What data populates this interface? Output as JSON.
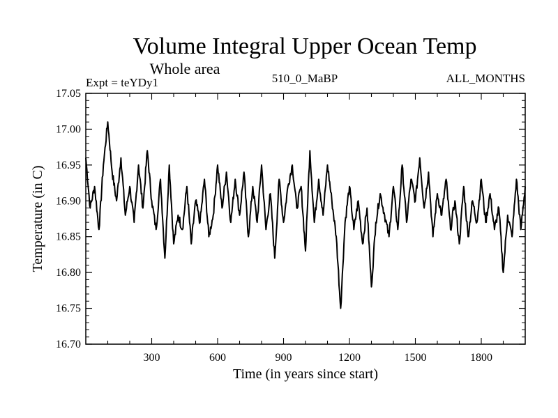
{
  "chart_data": {
    "type": "line",
    "title": "Volume Integral Upper Ocean Temp",
    "subtitle": "Whole area",
    "experiment": "Expt = teYDy1",
    "run": "510_0_MaBP",
    "season": "ALL_MONTHS",
    "xlabel": "Time (in years since start)",
    "ylabel": "Temperature (in C)",
    "xlim": [
      0,
      2000
    ],
    "ylim": [
      16.7,
      17.05
    ],
    "xticks": [
      300,
      600,
      900,
      1200,
      1500,
      1800
    ],
    "yticks": [
      "16.70",
      "16.75",
      "16.80",
      "16.85",
      "16.90",
      "16.95",
      "17.00",
      "17.05"
    ],
    "grid": false,
    "series": [
      {
        "name": "Volume Integral Upper Ocean Temp",
        "x": [
          0,
          20,
          40,
          60,
          80,
          100,
          120,
          140,
          160,
          180,
          200,
          220,
          240,
          260,
          280,
          300,
          320,
          340,
          360,
          380,
          400,
          420,
          440,
          460,
          480,
          500,
          520,
          540,
          560,
          580,
          600,
          620,
          640,
          660,
          680,
          700,
          720,
          740,
          760,
          780,
          800,
          820,
          840,
          860,
          880,
          900,
          920,
          940,
          960,
          980,
          1000,
          1020,
          1040,
          1060,
          1080,
          1100,
          1120,
          1140,
          1160,
          1180,
          1200,
          1220,
          1240,
          1260,
          1280,
          1300,
          1320,
          1340,
          1360,
          1380,
          1400,
          1420,
          1440,
          1460,
          1480,
          1500,
          1520,
          1540,
          1560,
          1580,
          1600,
          1620,
          1640,
          1660,
          1680,
          1700,
          1720,
          1740,
          1760,
          1780,
          1800,
          1820,
          1840,
          1860,
          1880,
          1900,
          1920,
          1940,
          1960,
          1980,
          2000
        ],
        "y": [
          16.96,
          16.89,
          16.92,
          16.86,
          16.95,
          17.01,
          16.94,
          16.9,
          16.96,
          16.88,
          16.92,
          16.87,
          16.95,
          16.89,
          16.97,
          16.9,
          16.86,
          16.93,
          16.82,
          16.95,
          16.84,
          16.88,
          16.86,
          16.92,
          16.84,
          16.9,
          16.87,
          16.93,
          16.85,
          16.88,
          16.95,
          16.89,
          16.94,
          16.87,
          16.93,
          16.88,
          16.94,
          16.85,
          16.92,
          16.87,
          16.95,
          16.86,
          16.91,
          16.82,
          16.93,
          16.87,
          16.92,
          16.95,
          16.89,
          16.92,
          16.83,
          16.97,
          16.87,
          16.93,
          16.88,
          16.95,
          16.9,
          16.85,
          16.75,
          16.87,
          16.92,
          16.86,
          16.9,
          16.84,
          16.89,
          16.78,
          16.87,
          16.91,
          16.88,
          16.85,
          16.92,
          16.86,
          16.95,
          16.87,
          16.93,
          16.9,
          16.96,
          16.89,
          16.94,
          16.85,
          16.91,
          16.88,
          16.93,
          16.86,
          16.9,
          16.84,
          16.92,
          16.85,
          16.9,
          16.87,
          16.93,
          16.87,
          16.91,
          16.86,
          16.89,
          16.8,
          16.88,
          16.85,
          16.93,
          16.86,
          16.92
        ]
      }
    ]
  }
}
